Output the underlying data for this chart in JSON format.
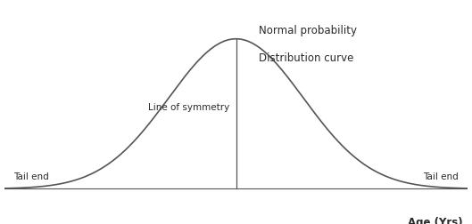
{
  "title_line1": "Normal probability",
  "title_line2": "Distribution curve",
  "symmetry_label": "Line of symmetry",
  "tail_left_label": "Tail end",
  "tail_right_label": "Tail end",
  "xlabel": "Age (Yrs)",
  "curve_color": "#555555",
  "line_color": "#555555",
  "bg_color": "#ffffff",
  "text_color": "#2a2a2a",
  "mu": 0.0,
  "sigma": 1.6,
  "x_min": -5.5,
  "x_max": 5.5,
  "figsize": [
    5.29,
    2.53
  ],
  "dpi": 100
}
